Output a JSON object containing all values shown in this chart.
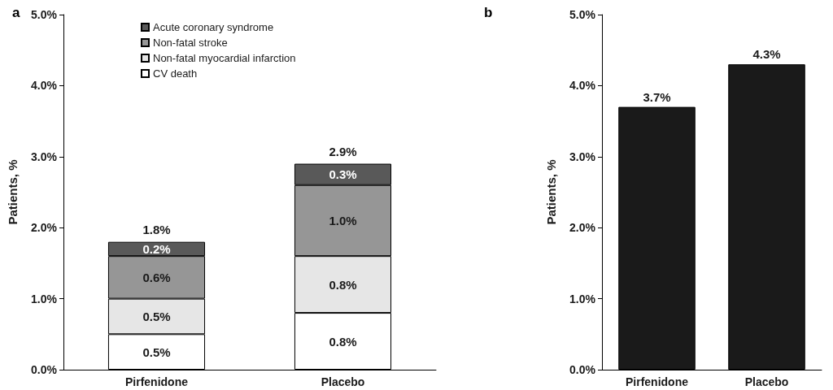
{
  "chart_data": [
    {
      "type": "bar",
      "title": "a",
      "ylabel": "Patients, %",
      "categories": [
        "Pirfenidone",
        "Placebo"
      ],
      "stacked": true,
      "legend": "top left",
      "grid": false,
      "ylim": [
        0,
        5
      ],
      "yticks": [
        {
          "value": 0,
          "label": "0.0%"
        },
        {
          "value": 1,
          "label": "1.0%"
        },
        {
          "value": 2,
          "label": "2.0%"
        },
        {
          "value": 3,
          "label": "3.0%"
        },
        {
          "value": 4,
          "label": "4.0%"
        },
        {
          "value": 5,
          "label": "5.0%"
        }
      ],
      "series": [
        {
          "name": "CV death",
          "color": "#ffffff",
          "values": [
            0.5,
            0.8
          ],
          "value_labels": [
            "0.5%",
            "0.8%"
          ]
        },
        {
          "name": "Non-fatal myocardial infarction",
          "color": "#e6e6e6",
          "values": [
            0.5,
            0.8
          ],
          "value_labels": [
            "0.5%",
            "0.8%"
          ]
        },
        {
          "name": "Non-fatal stroke",
          "color": "#969696",
          "values": [
            0.6,
            1.0
          ],
          "value_labels": [
            "0.6%",
            "1.0%"
          ]
        },
        {
          "name": "Acute coronary syndrome",
          "color": "#595959",
          "values": [
            0.2,
            0.3
          ],
          "value_labels": [
            "0.2%",
            "0.3%"
          ]
        }
      ],
      "totals": [
        "1.8%",
        "2.9%"
      ]
    },
    {
      "type": "bar",
      "title": "b",
      "ylabel": "Patients, %",
      "categories": [
        "Pirfenidone",
        "Placebo"
      ],
      "legend": false,
      "grid": false,
      "ylim": [
        0,
        5
      ],
      "yticks": [
        {
          "value": 0,
          "label": "0.0%"
        },
        {
          "value": 1,
          "label": "1.0%"
        },
        {
          "value": 2,
          "label": "2.0%"
        },
        {
          "value": 3,
          "label": "3.0%"
        },
        {
          "value": 4,
          "label": "4.0%"
        },
        {
          "value": 5,
          "label": "5.0%"
        }
      ],
      "series": [
        {
          "color": "#1a1a1a",
          "values": [
            3.7,
            4.3
          ],
          "value_labels": [
            "3.7%",
            "4.3%"
          ]
        }
      ]
    }
  ]
}
